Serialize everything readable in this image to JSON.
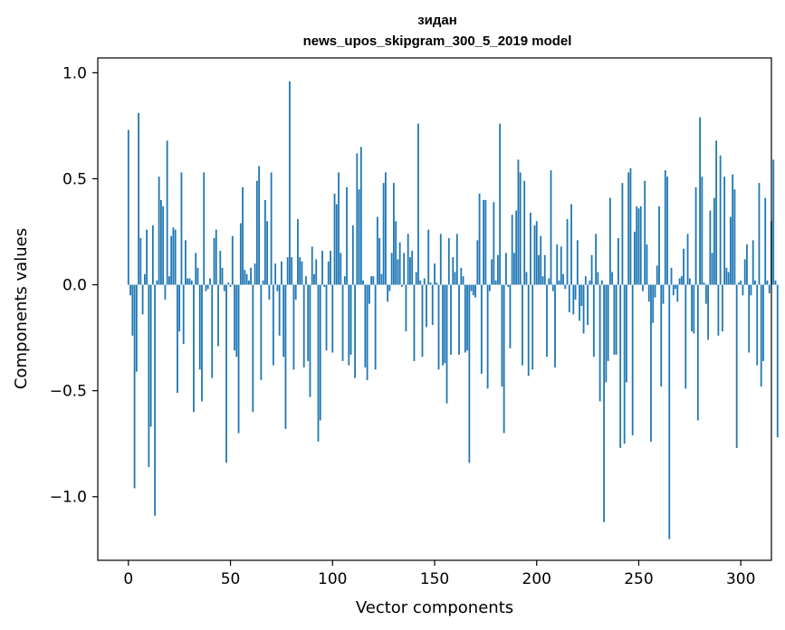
{
  "chart_data": {
    "type": "bar",
    "title": "зидан",
    "subtitle": "news_upos_skipgram_300_5_2019 model",
    "xlabel": "Vector components",
    "ylabel": "Components values",
    "xlim": [
      -15,
      315
    ],
    "ylim": [
      -1.3,
      1.07
    ],
    "xticks": [
      0,
      50,
      100,
      150,
      200,
      250,
      300
    ],
    "yticks": [
      -1.0,
      -0.5,
      0.0,
      0.5,
      1.0
    ],
    "ytick_labels": [
      "−1.0",
      "−0.5",
      "0.0",
      "0.5",
      "1.0"
    ],
    "grid": false,
    "color": "#1f77b4",
    "values": [
      0.73,
      -0.05,
      -0.24,
      -0.96,
      -0.41,
      0.81,
      0.22,
      -0.14,
      0.05,
      0.26,
      -0.86,
      -0.67,
      0.28,
      -1.09,
      0.02,
      0.51,
      0.4,
      0.37,
      -0.07,
      0.68,
      0.04,
      0.23,
      0.27,
      0.26,
      -0.51,
      -0.22,
      0.53,
      -0.28,
      0.21,
      0.03,
      0.03,
      0.02,
      -0.6,
      0.15,
      0.08,
      -0.4,
      -0.55,
      0.53,
      -0.03,
      -0.02,
      0.03,
      -0.44,
      0.22,
      0.26,
      -0.29,
      0.16,
      0.08,
      -0.03,
      -0.84,
      0.01,
      -0.01,
      0.23,
      -0.31,
      -0.34,
      -0.7,
      0.29,
      0.46,
      0.07,
      0.05,
      0.02,
      0.08,
      -0.6,
      0.1,
      0.49,
      0.56,
      -0.45,
      0.02,
      0.4,
      0.3,
      -0.07,
      0.53,
      -0.38,
      0.1,
      -0.03,
      -0.24,
      0.11,
      -0.34,
      -0.68,
      0.13,
      0.96,
      0.13,
      -0.4,
      -0.07,
      0.31,
      0.13,
      0.11,
      -0.39,
      0.04,
      -0.36,
      -0.53,
      0.18,
      0.05,
      0.12,
      -0.74,
      -0.64,
      0.16,
      -0.01,
      -0.31,
      0.11,
      0.16,
      -0.32,
      0.43,
      0.38,
      0.53,
      0.15,
      -0.36,
      0.04,
      0.46,
      -0.38,
      -0.33,
      0.28,
      -0.44,
      0.62,
      0.45,
      0.65,
      0.02,
      -0.39,
      -0.45,
      -0.09,
      0.04,
      0.04,
      -0.4,
      0.32,
      0.22,
      0.05,
      0.48,
      0.53,
      -0.08,
      -0.03,
      0.15,
      0.48,
      0.3,
      0.12,
      0.2,
      -0.01,
      0.15,
      -0.22,
      0.24,
      0.13,
      0.16,
      -0.36,
      0.06,
      0.76,
      0.02,
      -0.34,
      0.03,
      -0.2,
      0.26,
      0.01,
      -0.19,
      0.1,
      0.01,
      -0.4,
      0.24,
      -0.38,
      -0.37,
      -0.56,
      0.22,
      -0.33,
      0.13,
      0.06,
      0.24,
      -0.33,
      0.08,
      0.04,
      -0.32,
      -0.31,
      -0.84,
      -0.03,
      -0.05,
      -0.06,
      0.21,
      0.43,
      -0.42,
      0.4,
      0.4,
      -0.49,
      -0.03,
      0.12,
      0.39,
      0.02,
      0.14,
      0.76,
      -0.48,
      -0.7,
      0.15,
      -0.01,
      -0.3,
      0.33,
      0.15,
      0.35,
      0.59,
      0.53,
      -0.38,
      0.49,
      0.06,
      -0.43,
      0.34,
      -0.4,
      0.28,
      0.3,
      0.14,
      0.23,
      0.04,
      0.14,
      -0.34,
      0.03,
      0.54,
      -0.03,
      -0.39,
      0.19,
      0.02,
      0.18,
      0.05,
      -0.02,
      0.31,
      -0.13,
      0.38,
      -0.14,
      -0.07,
      0.21,
      -0.17,
      -0.1,
      -0.23,
      0.04,
      -0.19,
      0.02,
      0.14,
      -0.34,
      0.24,
      0.06,
      -0.55,
      0.02,
      -1.12,
      -0.46,
      -0.36,
      0.41,
      0.06,
      -0.33,
      -0.33,
      0.22,
      -0.77,
      0.48,
      -0.75,
      -0.46,
      0.53,
      0.55,
      -0.71,
      0.25,
      0.37,
      0.36,
      0.37,
      -0.03,
      0.49,
      0.19,
      -0.08,
      -0.74,
      -0.18,
      -0.06,
      0.09,
      0.37,
      -0.48,
      -0.09,
      0.54,
      0.51,
      -1.2,
      0.08,
      -0.05,
      -0.02,
      -0.08,
      0.03,
      0.04,
      0.17,
      -0.49,
      0.24,
      0.03,
      -0.22,
      -0.23,
      0.46,
      -0.64,
      0.79,
      0.51,
      0.01,
      -0.09,
      -0.26,
      0.35,
      0.15,
      0.41,
      0.68,
      -0.24,
      0.61,
      -0.22,
      0.51,
      0.08,
      0.06,
      0.32,
      0.52,
      0.45,
      -0.77,
      0.01,
      0.02,
      -0.05,
      0.12,
      0.19,
      -0.32,
      -0.05,
      0.21,
      0.02,
      -0.38,
      0.48,
      -0.48,
      -0.36,
      0.41,
      0.02,
      -0.04,
      0.3,
      0.59,
      0.02,
      -0.72
    ]
  }
}
